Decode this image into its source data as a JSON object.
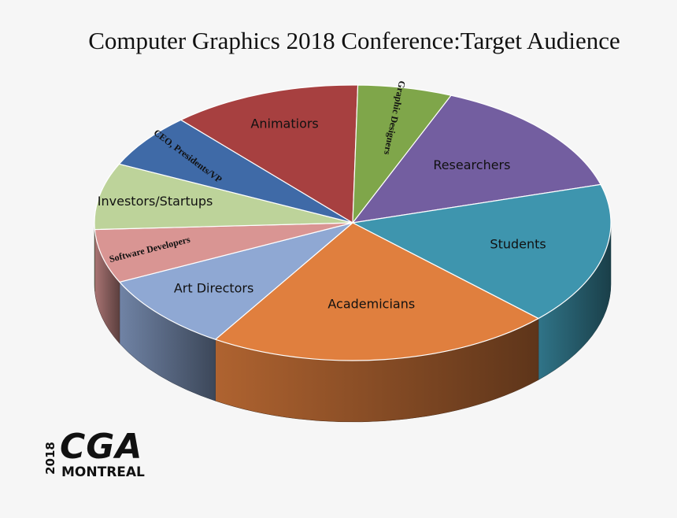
{
  "chart_data": {
    "type": "pie",
    "title": "Computer Graphics 2018 Conference:Target Audience",
    "slices": [
      {
        "label": "Researchers",
        "value": 14.3,
        "color": "#735ea0"
      },
      {
        "label": "Students",
        "value": 16.7,
        "color": "#3e95ae"
      },
      {
        "label": "Academicians",
        "value": 21.7,
        "color": "#e07f3e"
      },
      {
        "label": "Art Directors",
        "value": 9.0,
        "color": "#8fa8d3"
      },
      {
        "label": "Software Developers",
        "value": 6.3,
        "color": "#d99593"
      },
      {
        "label": "Investors/Startups",
        "value": 7.8,
        "color": "#bdd39a"
      },
      {
        "label": "CEO, Presidents/VP",
        "value": 6.4,
        "color": "#3f6aa7"
      },
      {
        "label": "Animatiors",
        "value": 11.9,
        "color": "#a74040"
      },
      {
        "label": "Graphic Designers",
        "value": 5.9,
        "color": "#7fa64a"
      }
    ]
  },
  "logo": {
    "year": "2018",
    "name": "CGA",
    "city": "MONTREAL"
  }
}
